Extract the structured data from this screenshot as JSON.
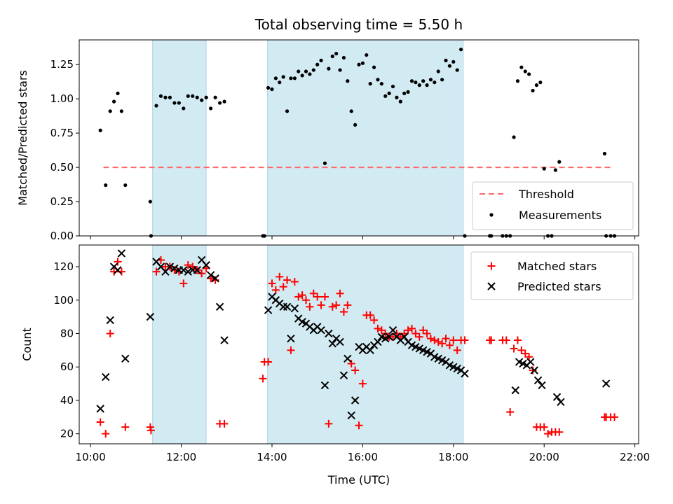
{
  "chart_data": [
    {
      "type": "scatter",
      "title": "Total observing time = 5.50 h",
      "xlabel": "",
      "ylabel": "Matched/Predicted stars",
      "ylim": [
        0,
        1.43
      ],
      "yticks": [
        "0.00",
        "0.25",
        "0.50",
        "0.75",
        "1.00",
        "1.25"
      ],
      "legend_position": "lower right",
      "shaded_intervals": [
        [
          "11:22",
          "12:33"
        ],
        [
          "13:54",
          "18:13"
        ]
      ],
      "shade_color": "#add8e6",
      "threshold": {
        "name": "Threshold",
        "value": 0.5,
        "x_start": "10:17",
        "x_end": "21:30",
        "color": "#ff6666"
      },
      "series": [
        {
          "name": "Measurements",
          "color": "#000000",
          "x": [
            "10:13",
            "10:20",
            "10:26",
            "10:31",
            "10:36",
            "10:41",
            "10:46",
            "11:19",
            "11:20",
            "11:27",
            "11:33",
            "11:39",
            "11:45",
            "11:51",
            "11:57",
            "12:03",
            "12:09",
            "12:15",
            "12:21",
            "12:27",
            "12:33",
            "12:39",
            "12:45",
            "12:51",
            "12:57",
            "13:48",
            "13:50",
            "13:55",
            "14:00",
            "14:05",
            "14:10",
            "14:15",
            "14:20",
            "14:25",
            "14:30",
            "14:35",
            "14:40",
            "14:45",
            "14:50",
            "14:55",
            "15:00",
            "15:05",
            "15:10",
            "15:15",
            "15:20",
            "15:25",
            "15:30",
            "15:35",
            "15:40",
            "15:45",
            "15:50",
            "15:55",
            "16:00",
            "16:05",
            "16:10",
            "16:15",
            "16:20",
            "16:25",
            "16:30",
            "16:35",
            "16:40",
            "16:45",
            "16:50",
            "16:55",
            "17:00",
            "17:05",
            "17:10",
            "17:15",
            "17:20",
            "17:25",
            "17:30",
            "17:35",
            "17:40",
            "17:45",
            "17:50",
            "17:55",
            "18:00",
            "18:05",
            "18:10",
            "18:15",
            "18:48",
            "18:50",
            "19:05",
            "19:10",
            "19:15",
            "19:20",
            "19:25",
            "19:30",
            "19:35",
            "19:40",
            "19:45",
            "19:50",
            "19:55",
            "20:00",
            "20:05",
            "20:10",
            "20:15",
            "20:20",
            "21:20",
            "21:22",
            "21:28",
            "21:33"
          ],
          "y": [
            0.77,
            0.37,
            0.91,
            0.98,
            1.04,
            0.91,
            0.37,
            0.25,
            0.0,
            0.95,
            1.02,
            1.01,
            1.01,
            0.97,
            0.97,
            0.93,
            1.02,
            1.02,
            1.01,
            0.99,
            1.01,
            0.93,
            1.01,
            0.97,
            0.98,
            0.0,
            0.0,
            1.08,
            1.07,
            1.15,
            1.12,
            1.16,
            0.91,
            1.15,
            1.15,
            1.2,
            1.17,
            1.2,
            1.18,
            1.21,
            1.25,
            1.28,
            0.53,
            1.22,
            1.31,
            1.33,
            1.21,
            1.3,
            1.13,
            0.91,
            0.81,
            1.25,
            1.26,
            1.32,
            1.11,
            1.23,
            1.14,
            1.11,
            1.02,
            1.04,
            1.09,
            1.01,
            0.98,
            1.04,
            1.05,
            1.13,
            1.12,
            1.1,
            1.13,
            1.1,
            1.14,
            1.12,
            1.2,
            1.14,
            1.28,
            1.24,
            1.27,
            1.21,
            1.36,
            0.0,
            0.0,
            0.0,
            0.0,
            0.0,
            0.0,
            0.72,
            1.13,
            1.23,
            1.2,
            1.18,
            1.06,
            1.1,
            1.12,
            0.49,
            0.0,
            0.0,
            0.48,
            0.54,
            0.6,
            0.0,
            0.0,
            0.0
          ]
        }
      ]
    },
    {
      "type": "scatter",
      "title": "",
      "xlabel": "Time (UTC)",
      "ylabel": "Count",
      "ylim": [
        14,
        133
      ],
      "yticks": [
        "20",
        "40",
        "60",
        "80",
        "100",
        "120"
      ],
      "xlim": [
        "09:45",
        "22:05"
      ],
      "xticks": [
        "10:00",
        "12:00",
        "14:00",
        "16:00",
        "18:00",
        "20:00",
        "22:00"
      ],
      "legend_position": "upper right",
      "series": [
        {
          "name": "Matched stars",
          "marker": "+",
          "color": "#ff0000",
          "x": [
            "10:13",
            "10:20",
            "10:26",
            "10:31",
            "10:36",
            "10:41",
            "10:46",
            "11:19",
            "11:20",
            "11:27",
            "11:33",
            "11:39",
            "11:45",
            "11:51",
            "11:57",
            "12:03",
            "12:09",
            "12:15",
            "12:21",
            "12:27",
            "12:33",
            "12:39",
            "12:45",
            "12:51",
            "12:57",
            "13:48",
            "13:50",
            "13:55",
            "14:00",
            "14:05",
            "14:10",
            "14:15",
            "14:20",
            "14:25",
            "14:30",
            "14:35",
            "14:40",
            "14:45",
            "14:50",
            "14:55",
            "15:00",
            "15:05",
            "15:10",
            "15:15",
            "15:20",
            "15:25",
            "15:30",
            "15:35",
            "15:40",
            "15:45",
            "15:50",
            "15:55",
            "16:00",
            "16:05",
            "16:10",
            "16:15",
            "16:20",
            "16:25",
            "16:30",
            "16:35",
            "16:40",
            "16:45",
            "16:50",
            "16:55",
            "17:00",
            "17:05",
            "17:10",
            "17:15",
            "17:20",
            "17:25",
            "17:30",
            "17:35",
            "17:40",
            "17:45",
            "17:50",
            "17:55",
            "18:00",
            "18:05",
            "18:10",
            "18:15",
            "18:48",
            "18:50",
            "19:05",
            "19:10",
            "19:15",
            "19:20",
            "19:25",
            "19:30",
            "19:35",
            "19:40",
            "19:45",
            "19:50",
            "19:55",
            "20:00",
            "20:05",
            "20:10",
            "20:15",
            "20:20",
            "21:20",
            "21:22",
            "21:28",
            "21:33"
          ],
          "y": [
            27,
            20,
            80,
            117,
            123,
            117,
            24,
            24,
            22,
            117,
            124,
            120,
            120,
            118,
            117,
            110,
            121,
            120,
            118,
            116,
            119,
            113,
            112,
            26,
            26,
            53,
            63,
            63,
            110,
            106,
            114,
            108,
            112,
            70,
            111,
            102,
            103,
            100,
            96,
            104,
            102,
            97,
            102,
            26,
            96,
            97,
            104,
            93,
            97,
            62,
            58,
            25,
            50,
            91,
            91,
            88,
            83,
            82,
            80,
            78,
            78,
            80,
            78,
            80,
            82,
            83,
            80,
            78,
            82,
            80,
            77,
            76,
            75,
            74,
            77,
            73,
            76,
            70,
            76,
            76,
            76,
            76,
            76,
            76,
            33,
            71,
            76,
            70,
            68,
            66,
            58,
            24,
            24,
            24,
            20,
            21,
            21,
            21,
            30,
            30,
            30,
            30
          ]
        },
        {
          "name": "Predicted stars",
          "marker": "x",
          "color": "#000000",
          "x": [
            "10:13",
            "10:20",
            "10:26",
            "10:31",
            "10:36",
            "10:41",
            "10:46",
            "11:19",
            "11:27",
            "11:33",
            "11:39",
            "11:45",
            "11:51",
            "11:57",
            "12:03",
            "12:09",
            "12:15",
            "12:21",
            "12:27",
            "12:33",
            "12:39",
            "12:45",
            "12:51",
            "12:57",
            "13:55",
            "14:00",
            "14:05",
            "14:10",
            "14:15",
            "14:20",
            "14:25",
            "14:30",
            "14:35",
            "14:40",
            "14:45",
            "14:50",
            "14:55",
            "15:00",
            "15:05",
            "15:10",
            "15:15",
            "15:20",
            "15:25",
            "15:30",
            "15:35",
            "15:40",
            "15:45",
            "15:50",
            "15:55",
            "16:00",
            "16:05",
            "16:10",
            "16:15",
            "16:20",
            "16:25",
            "16:30",
            "16:35",
            "16:40",
            "16:45",
            "16:50",
            "16:55",
            "17:00",
            "17:05",
            "17:10",
            "17:15",
            "17:20",
            "17:25",
            "17:30",
            "17:35",
            "17:40",
            "17:45",
            "17:50",
            "17:55",
            "18:00",
            "18:05",
            "18:10",
            "18:15",
            "19:22",
            "19:27",
            "19:32",
            "19:37",
            "19:42",
            "19:47",
            "19:52",
            "19:57",
            "20:17",
            "20:22",
            "21:22"
          ],
          "y": [
            35,
            54,
            88,
            120,
            118,
            128,
            65,
            90,
            123,
            120,
            117,
            120,
            119,
            118,
            118,
            117,
            118,
            118,
            124,
            121,
            115,
            113,
            96,
            76,
            94,
            102,
            100,
            98,
            96,
            96,
            77,
            95,
            89,
            87,
            86,
            84,
            82,
            84,
            82,
            49,
            80,
            74,
            77,
            75,
            55,
            65,
            31,
            40,
            72,
            70,
            72,
            70,
            73,
            75,
            78,
            77,
            78,
            82,
            78,
            76,
            78,
            75,
            73,
            72,
            71,
            70,
            69,
            68,
            66,
            65,
            64,
            63,
            61,
            60,
            59,
            58,
            56,
            46,
            63,
            62,
            61,
            63,
            58,
            52,
            49,
            42,
            39,
            50
          ]
        }
      ]
    }
  ]
}
